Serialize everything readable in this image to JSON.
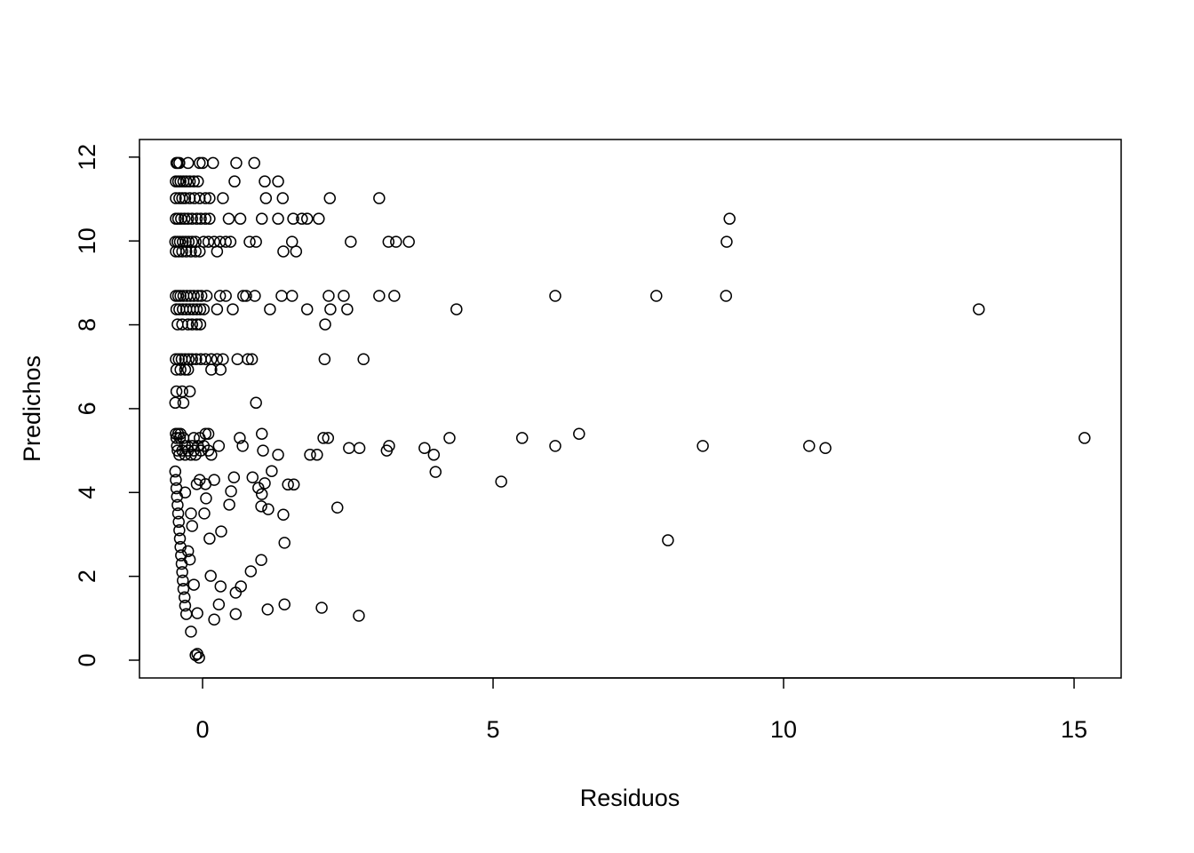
{
  "chart_data": {
    "type": "scatter",
    "xlabel": "Residuos",
    "ylabel": "Predichos",
    "xlim": [
      -1.086,
      15.81
    ],
    "ylim": [
      -0.424,
      12.42
    ],
    "xticks": [
      0,
      5,
      10,
      15
    ],
    "yticks": [
      0,
      2,
      4,
      6,
      8,
      10,
      12
    ],
    "color": "#000000",
    "x": [
      -0.45,
      -0.43,
      -0.4,
      -0.25,
      -0.05,
      0.0,
      0.18,
      0.58,
      0.89,
      -0.46,
      -0.42,
      -0.38,
      -0.33,
      -0.28,
      -0.22,
      -0.15,
      -0.08,
      0.55,
      1.07,
      1.3,
      -0.46,
      -0.4,
      -0.35,
      -0.3,
      -0.22,
      -0.14,
      -0.05,
      0.05,
      0.12,
      0.35,
      1.09,
      1.38,
      2.19,
      3.04,
      -0.46,
      -0.42,
      -0.37,
      -0.31,
      -0.25,
      -0.18,
      -0.1,
      -0.03,
      0.05,
      0.12,
      0.45,
      0.65,
      1.02,
      1.3,
      1.56,
      1.71,
      1.8,
      2.0,
      9.07,
      -0.47,
      -0.43,
      -0.39,
      -0.34,
      -0.29,
      -0.24,
      -0.18,
      -0.12,
      0.02,
      0.1,
      0.2,
      0.3,
      0.4,
      0.48,
      0.81,
      0.92,
      1.54,
      2.55,
      3.2,
      3.33,
      3.55,
      9.02,
      -0.46,
      -0.41,
      -0.35,
      -0.28,
      -0.2,
      -0.12,
      -0.05,
      0.25,
      1.39,
      1.61,
      -0.46,
      -0.42,
      -0.38,
      -0.33,
      -0.27,
      -0.21,
      -0.15,
      -0.08,
      -0.02,
      0.07,
      0.3,
      0.4,
      0.7,
      0.75,
      0.9,
      1.36,
      1.54,
      2.17,
      2.43,
      3.04,
      3.3,
      6.07,
      7.81,
      9.01,
      -0.45,
      -0.4,
      -0.34,
      -0.28,
      -0.22,
      -0.16,
      -0.1,
      -0.04,
      0.02,
      0.25,
      0.52,
      1.16,
      1.8,
      2.2,
      2.49,
      4.37,
      13.36,
      -0.43,
      -0.35,
      -0.25,
      -0.18,
      -0.1,
      -0.04,
      2.11,
      -0.46,
      -0.41,
      -0.36,
      -0.3,
      -0.24,
      -0.18,
      -0.11,
      -0.03,
      0.05,
      0.15,
      0.25,
      0.35,
      0.6,
      0.78,
      0.85,
      2.1,
      2.77,
      -0.45,
      -0.38,
      -0.3,
      -0.25,
      0.15,
      0.31,
      -0.45,
      -0.35,
      -0.22,
      -0.47,
      -0.33,
      0.92,
      -0.46,
      -0.42,
      -0.38,
      0.05,
      0.1,
      1.02,
      6.48,
      -0.45,
      -0.39,
      -0.33,
      -0.15,
      -0.05,
      0.64,
      2.08,
      2.16,
      4.25,
      5.5,
      15.18,
      -0.44,
      -0.3,
      -0.18,
      -0.08,
      0.02,
      0.28,
      0.69,
      3.21,
      6.07,
      8.61,
      10.44,
      2.52,
      2.7,
      3.82,
      10.72,
      -0.43,
      -0.35,
      -0.25,
      -0.15,
      -0.03,
      0.1,
      1.04,
      3.17,
      -0.4,
      -0.3,
      -0.2,
      -0.12,
      0.15,
      1.3,
      1.85,
      1.97,
      3.98,
      -0.47,
      -0.46,
      -0.45,
      -0.44,
      -0.43,
      -0.42,
      -0.41,
      -0.4,
      -0.39,
      -0.38,
      -0.37,
      -0.36,
      -0.35,
      -0.34,
      -0.33,
      -0.31,
      -0.3,
      -0.28,
      -0.25,
      -0.22,
      -0.2,
      -0.18,
      -0.15,
      -0.1,
      -0.05,
      0.05,
      0.2,
      -0.3,
      1.41,
      1.12,
      2.05,
      2.69,
      2.32,
      1.41,
      1.39,
      1.47,
      1.57,
      1.19,
      1.13,
      1.01,
      1.01,
      0.83,
      0.66,
      0.57,
      0.57,
      0.2,
      1.07,
      1.02,
      0.96,
      0.32,
      0.46,
      0.54,
      0.49,
      0.86,
      0.31,
      0.28,
      0.14,
      0.12,
      0.06,
      0.03,
      -0.09,
      -0.2,
      -0.09,
      -0.06,
      -0.12,
      5.14,
      4.01,
      8.01
    ],
    "values": [
      11.86,
      11.86,
      11.86,
      11.86,
      11.86,
      11.86,
      11.86,
      11.86,
      11.86,
      11.42,
      11.42,
      11.42,
      11.42,
      11.42,
      11.42,
      11.42,
      11.42,
      11.42,
      11.42,
      11.42,
      11.02,
      11.02,
      11.02,
      11.02,
      11.02,
      11.02,
      11.02,
      11.02,
      11.02,
      11.02,
      11.02,
      11.02,
      11.02,
      11.02,
      10.53,
      10.53,
      10.53,
      10.53,
      10.53,
      10.53,
      10.53,
      10.53,
      10.53,
      10.53,
      10.53,
      10.53,
      10.53,
      10.53,
      10.53,
      10.53,
      10.53,
      10.53,
      10.53,
      9.98,
      9.98,
      9.98,
      9.98,
      9.98,
      9.98,
      9.98,
      9.98,
      9.98,
      9.98,
      9.98,
      9.98,
      9.98,
      9.98,
      9.98,
      9.98,
      9.98,
      9.98,
      9.98,
      9.98,
      9.98,
      9.98,
      9.75,
      9.75,
      9.75,
      9.75,
      9.75,
      9.75,
      9.75,
      9.75,
      9.75,
      9.75,
      8.69,
      8.69,
      8.69,
      8.69,
      8.69,
      8.69,
      8.69,
      8.69,
      8.69,
      8.69,
      8.69,
      8.69,
      8.69,
      8.69,
      8.69,
      8.69,
      8.69,
      8.69,
      8.69,
      8.69,
      8.69,
      8.69,
      8.69,
      8.69,
      8.37,
      8.37,
      8.37,
      8.37,
      8.37,
      8.37,
      8.37,
      8.37,
      8.37,
      8.37,
      8.37,
      8.37,
      8.37,
      8.37,
      8.37,
      8.37,
      8.37,
      8.01,
      8.01,
      8.01,
      8.01,
      8.01,
      8.01,
      8.01,
      7.18,
      7.18,
      7.18,
      7.18,
      7.18,
      7.18,
      7.18,
      7.18,
      7.18,
      7.18,
      7.18,
      7.18,
      7.18,
      7.18,
      7.18,
      7.18,
      7.18,
      6.93,
      6.93,
      6.93,
      6.93,
      6.93,
      6.93,
      6.41,
      6.41,
      6.41,
      6.14,
      6.14,
      6.14,
      5.4,
      5.4,
      5.4,
      5.4,
      5.4,
      5.4,
      5.4,
      5.3,
      5.3,
      5.3,
      5.3,
      5.3,
      5.3,
      5.3,
      5.3,
      5.3,
      5.3,
      5.3,
      5.11,
      5.11,
      5.11,
      5.11,
      5.11,
      5.11,
      5.11,
      5.11,
      5.11,
      5.11,
      5.11,
      5.06,
      5.06,
      5.06,
      5.06,
      5.0,
      5.0,
      5.0,
      5.0,
      5.0,
      5.0,
      5.0,
      5.0,
      4.9,
      4.9,
      4.9,
      4.9,
      4.9,
      4.9,
      4.9,
      4.9,
      4.9,
      4.5,
      4.3,
      4.1,
      3.9,
      3.7,
      3.5,
      3.3,
      3.1,
      2.9,
      2.7,
      2.5,
      2.3,
      2.1,
      1.9,
      1.7,
      1.5,
      1.3,
      1.1,
      2.6,
      2.4,
      3.5,
      3.2,
      1.8,
      4.2,
      4.3,
      4.2,
      4.3,
      4.0,
      1.33,
      1.21,
      1.25,
      1.06,
      3.64,
      2.8,
      3.47,
      4.19,
      4.19,
      4.51,
      3.6,
      3.67,
      2.39,
      2.12,
      1.76,
      1.61,
      1.1,
      0.97,
      4.22,
      3.96,
      4.11,
      3.07,
      3.71,
      4.36,
      4.03,
      4.36,
      1.76,
      1.33,
      2.01,
      2.9,
      3.86,
      3.5,
      1.12,
      0.68,
      0.15,
      0.06,
      0.12,
      4.26,
      4.49,
      2.86
    ]
  }
}
